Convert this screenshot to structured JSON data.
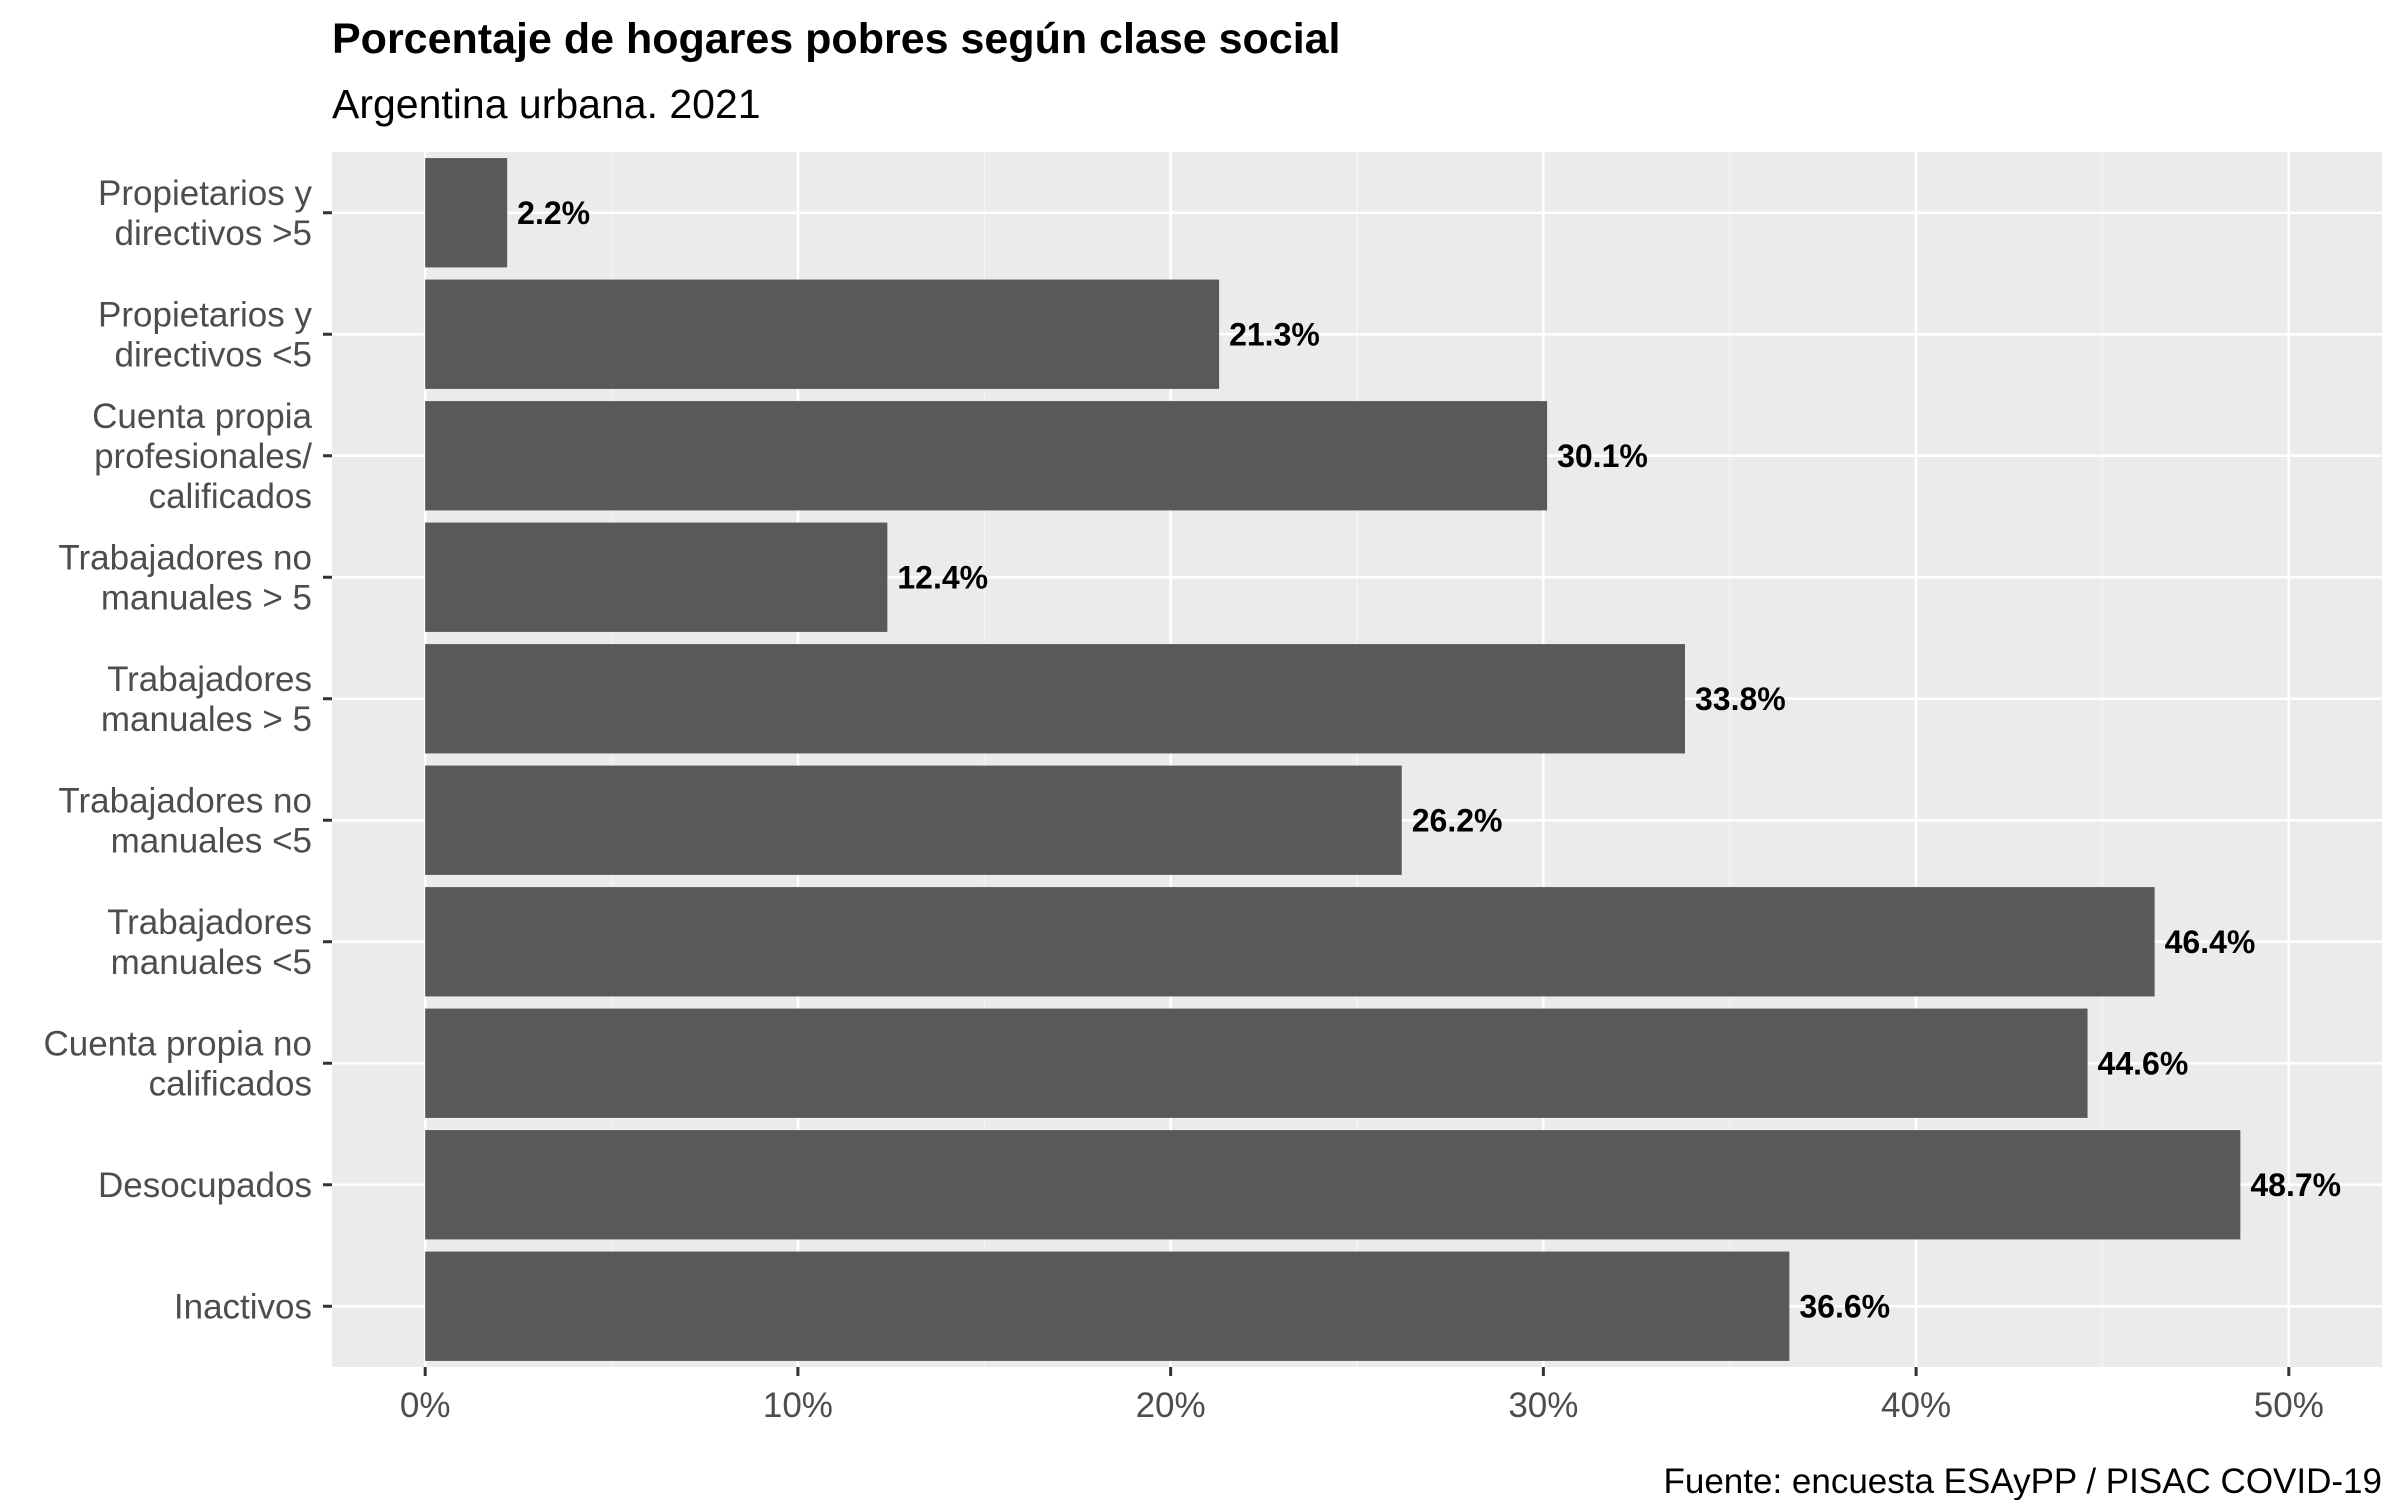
{
  "chart_data": {
    "type": "bar",
    "orientation": "horizontal",
    "title": "Porcentaje de hogares pobres según clase social",
    "subtitle": "Argentina urbana. 2021",
    "caption": "Fuente: encuesta ESAyPP / PISAC COVID-19",
    "xlabel": "",
    "ylabel": "",
    "xlim": [
      -2.5,
      52.5
    ],
    "x_ticks": [
      0,
      10,
      20,
      30,
      40,
      50
    ],
    "x_tick_labels": [
      "0%",
      "10%",
      "20%",
      "30%",
      "40%",
      "50%"
    ],
    "grid": true,
    "legend": "none",
    "categories": [
      [
        "Propietarios y",
        "directivos >5"
      ],
      [
        "Propietarios y",
        "directivos <5"
      ],
      [
        "Cuenta propia",
        "profesionales/",
        "calificados"
      ],
      [
        "Trabajadores no",
        "manuales > 5"
      ],
      [
        "Trabajadores",
        "manuales > 5"
      ],
      [
        "Trabajadores no",
        "manuales <5"
      ],
      [
        "Trabajadores",
        "manuales <5"
      ],
      [
        "Cuenta propia no",
        "calificados"
      ],
      [
        "Desocupados"
      ],
      [
        "Inactivos"
      ]
    ],
    "values": [
      2.2,
      21.3,
      30.1,
      12.4,
      33.8,
      26.2,
      46.4,
      44.6,
      48.7,
      36.6
    ],
    "value_labels": [
      "2.2%",
      "21.3%",
      "30.1%",
      "12.4%",
      "33.8%",
      "26.2%",
      "46.4%",
      "44.6%",
      "48.7%",
      "36.6%"
    ],
    "colors": {
      "bar": "#595959",
      "panel": "#ebebeb",
      "grid_major": "#ffffff",
      "grid_minor": "#f5f5f5",
      "tick": "#333333"
    }
  }
}
